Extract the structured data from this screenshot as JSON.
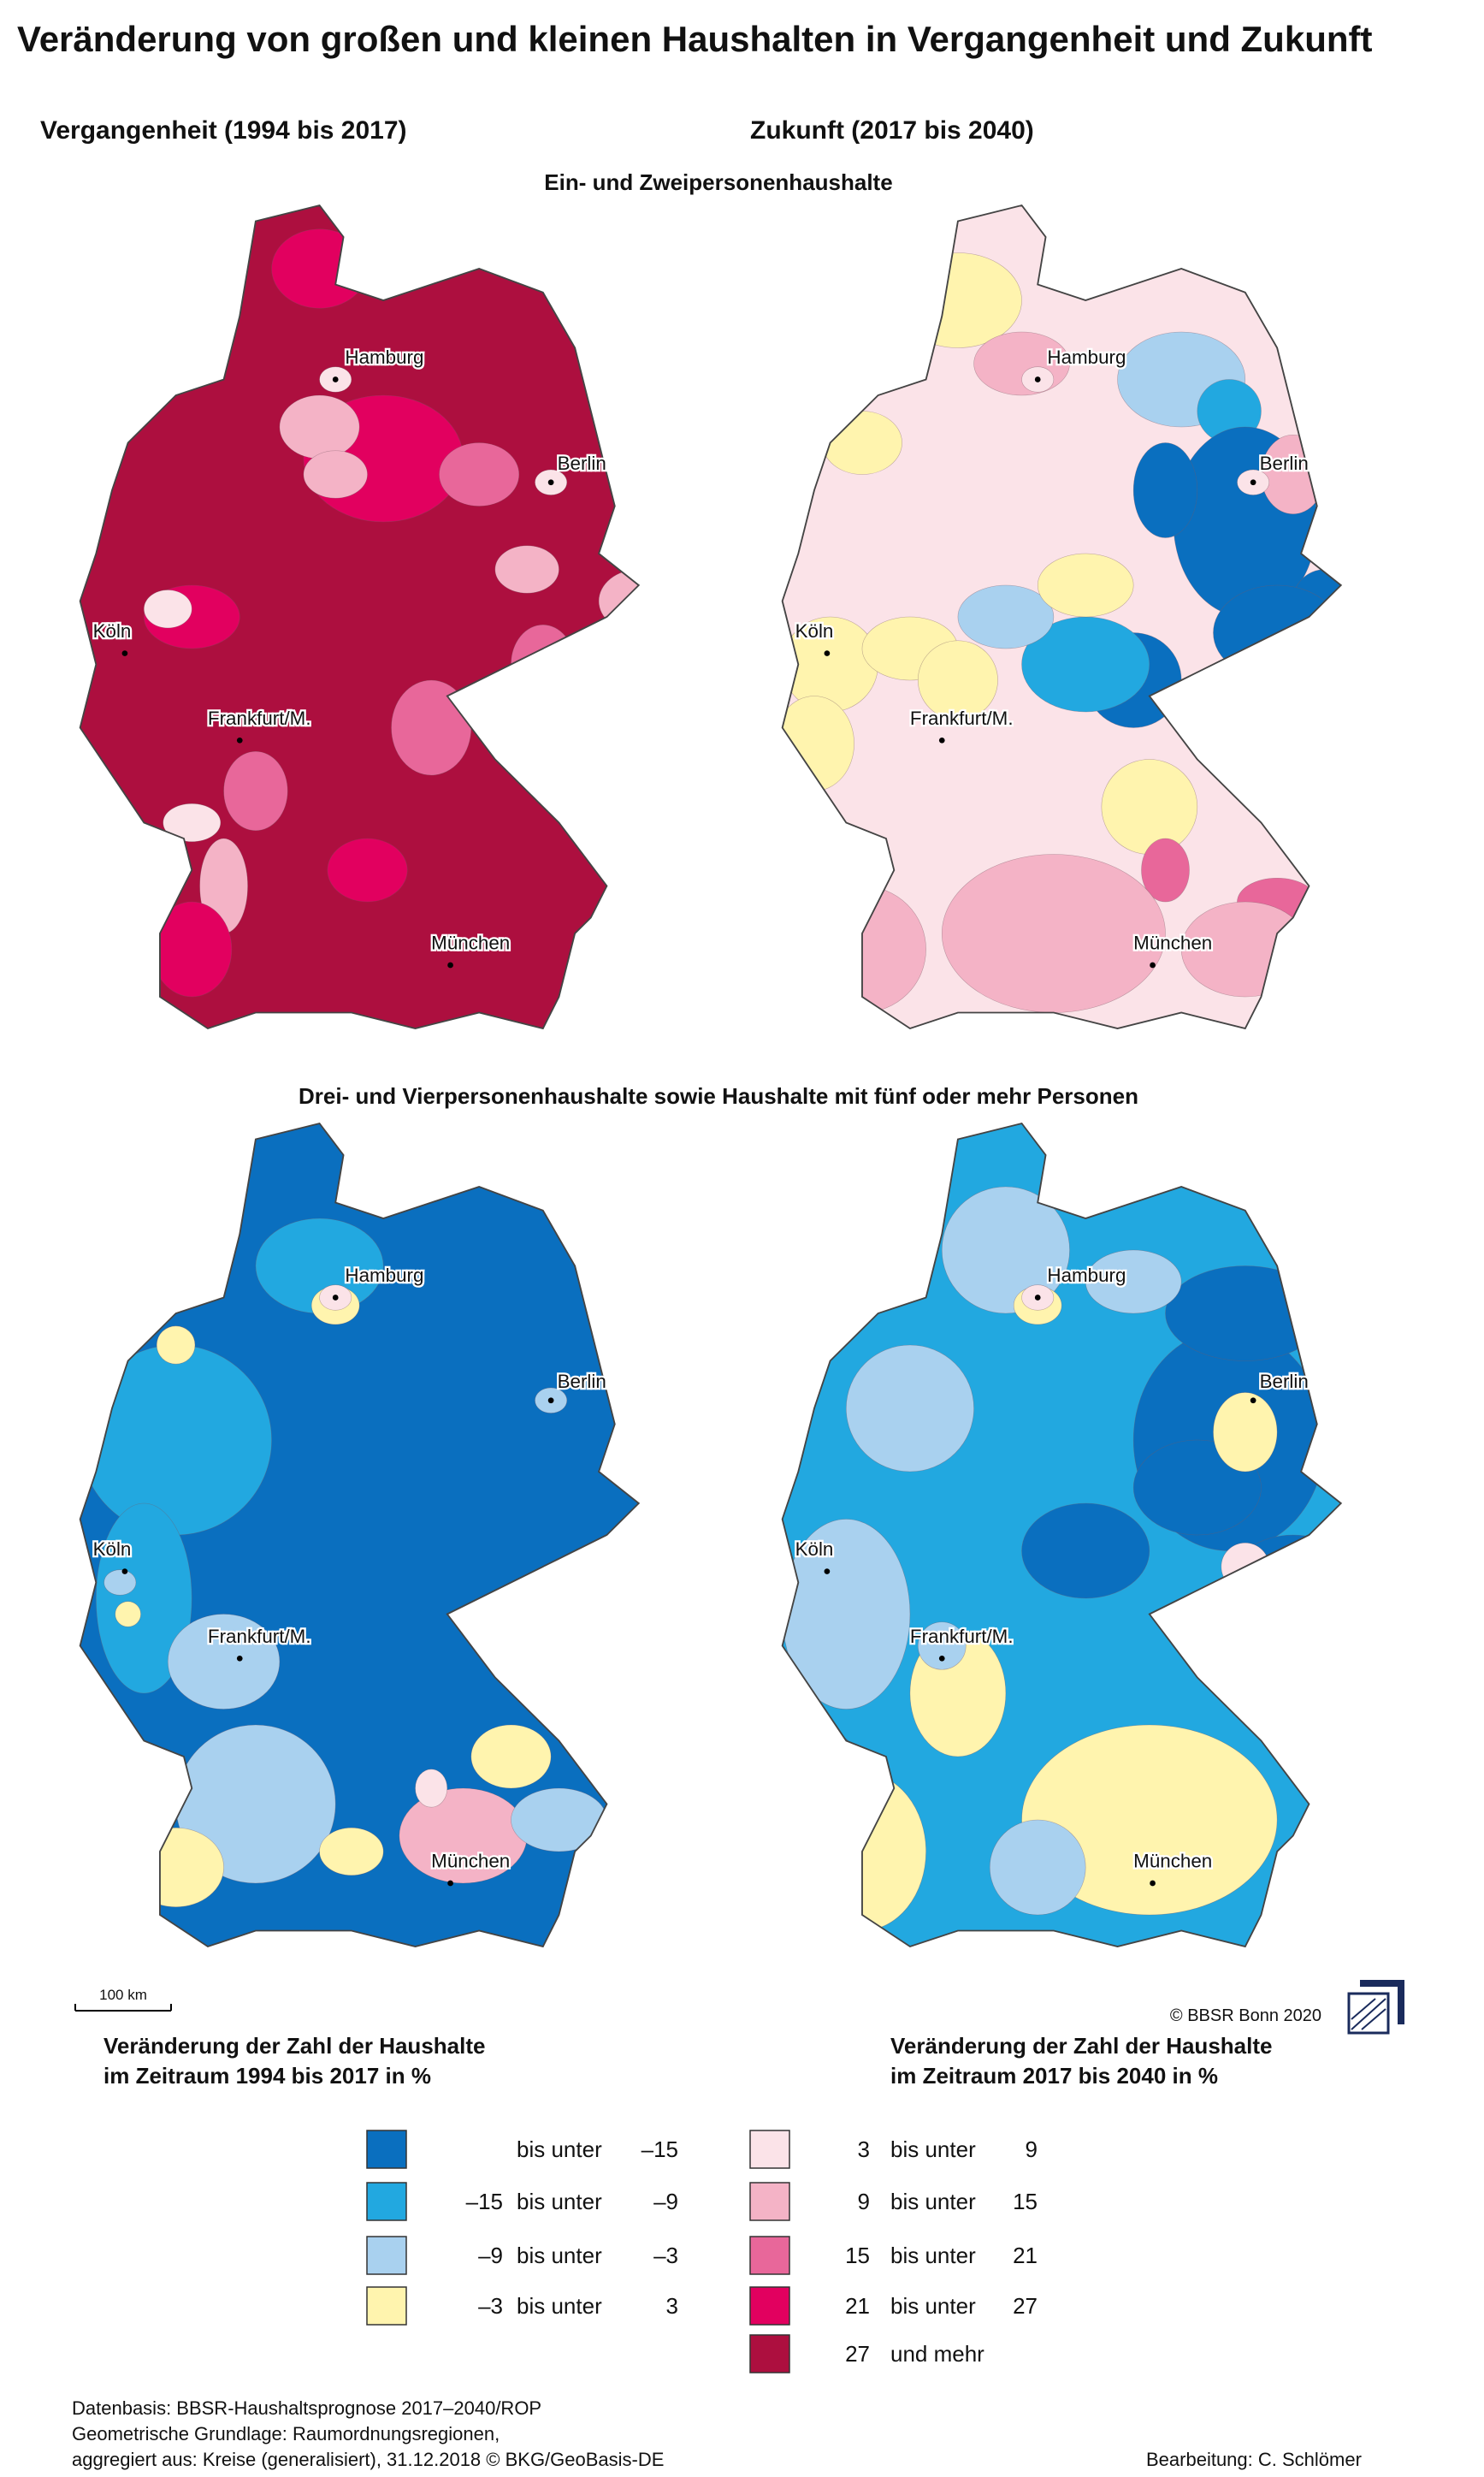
{
  "title": "Veränderung von großen und kleinen Haushalten in Vergangenheit und Zukunft",
  "columns": [
    "Vergangenheit (1994 bis 2017)",
    "Zukunft (2017 bis 2040)"
  ],
  "sections": [
    "Ein- und Zweipersonenhaushalte",
    "Drei- und Vierpersonenhaushalte sowie Haushalte mit fünf oder mehr Personen"
  ],
  "cities": [
    "Hamburg",
    "Berlin",
    "Köln",
    "Frankfurt/M.",
    "München"
  ],
  "scale_bar": "100 km",
  "copyright": "© BBSR Bonn 2020",
  "legend": {
    "titles": [
      [
        "Veränderung der Zahl der Haushalte",
        "im Zeitraum 1994 bis 2017 in %"
      ],
      [
        "Veränderung der Zahl der Haushalte",
        "im Zeitraum 2017 bis 2040 in %"
      ]
    ],
    "items": [
      {
        "connector": "bis unter",
        "to": "–15",
        "color": "#0a6fbf"
      },
      {
        "from": "–15",
        "connector": "bis unter",
        "to": "–9",
        "color": "#22a8e0"
      },
      {
        "from": "–9",
        "connector": "bis unter",
        "to": "–3",
        "color": "#a9d1ef"
      },
      {
        "from": "–3",
        "connector": "bis unter",
        "to": "3",
        "color": "#fff4ae"
      },
      {
        "from": "3",
        "connector": "bis unter",
        "to": "9",
        "color": "#fbe3e8"
      },
      {
        "from": "9",
        "connector": "bis unter",
        "to": "15",
        "color": "#f4b3c6"
      },
      {
        "from": "15",
        "connector": "bis unter",
        "to": "21",
        "color": "#e8679a"
      },
      {
        "from": "21",
        "connector": "bis unter",
        "to": "27",
        "color": "#e2005f"
      },
      {
        "from": "27",
        "connector": "und mehr",
        "color": "#ad0f3f"
      }
    ]
  },
  "footer": {
    "source": [
      "Datenbasis: BBSR-Haushaltsprognose 2017–2040/ROP",
      "Geometrische Grundlage: Raumordnungsregionen,",
      "aggregiert aus: Kreise (generalisiert), 31.12.2018 © BKG/GeoBasis-DE"
    ],
    "author": "Bearbeitung: C. Schlömer"
  }
}
